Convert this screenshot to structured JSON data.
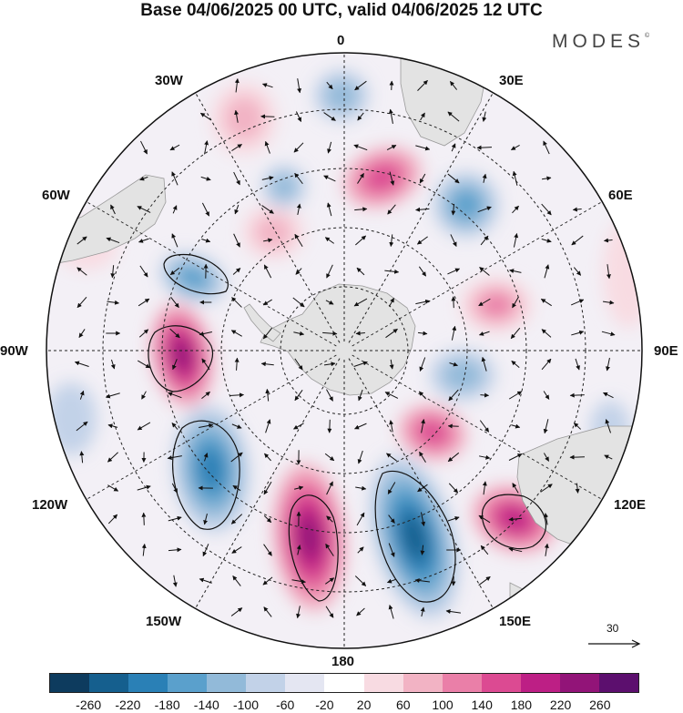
{
  "title": "Base 04/06/2025 00 UTC, valid 04/06/2025 12 UTC",
  "brand": {
    "name": "MODES",
    "mark": "©"
  },
  "lon_labels": [
    "0",
    "30E",
    "60E",
    "90E",
    "120E",
    "150E",
    "180",
    "150W",
    "120W",
    "90W",
    "60W",
    "30W"
  ],
  "reference_vector": {
    "value": "30"
  },
  "colorbar": {
    "colors": [
      "#0d3b5e",
      "#155f8e",
      "#2a80b6",
      "#5aa0cc",
      "#92bad9",
      "#c2d2e8",
      "#e4e6f2",
      "#ffffff",
      "#f8dbe2",
      "#f2b3c4",
      "#ea7fa8",
      "#dc4a92",
      "#bd1f85",
      "#921478",
      "#5c0f6e"
    ],
    "ticks": [
      "-260",
      "-220",
      "-180",
      "-140",
      "-100",
      "-60",
      "-20",
      "20",
      "60",
      "100",
      "140",
      "180",
      "220",
      "260"
    ]
  },
  "colors": {
    "land": "#e3e3e3",
    "coast": "#9a9a9a",
    "graticule": "#222222",
    "vector": "#111111"
  }
}
